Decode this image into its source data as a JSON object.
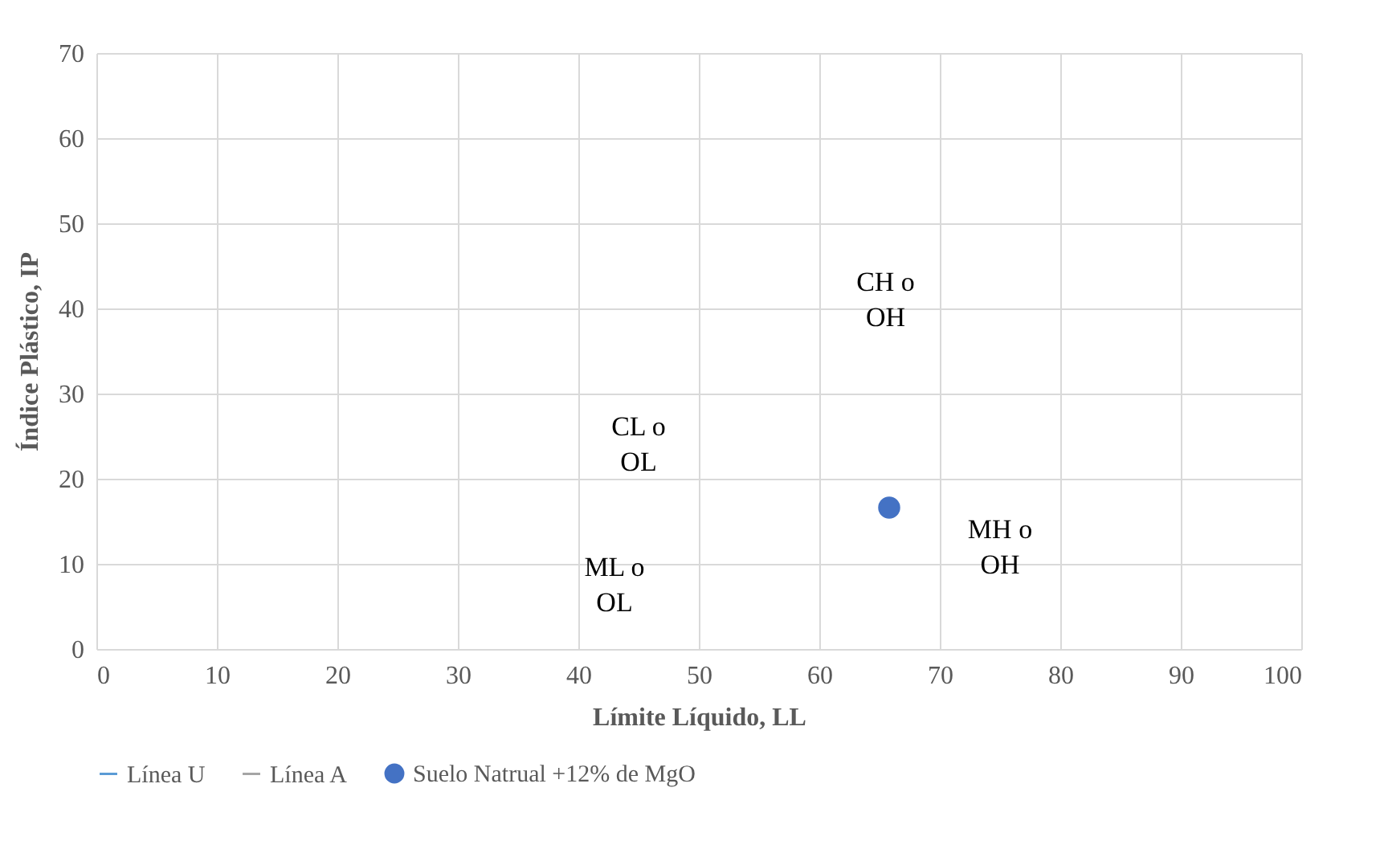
{
  "chart_data": {
    "type": "scatter",
    "xlabel": "Límite Líquido, LL",
    "ylabel": "Índice Plástico, IP",
    "xlim": [
      0,
      100
    ],
    "ylim": [
      0,
      70
    ],
    "xticks": [
      0,
      10,
      20,
      30,
      40,
      50,
      60,
      70,
      80,
      90,
      100
    ],
    "yticks": [
      0,
      10,
      20,
      30,
      40,
      50,
      60,
      70
    ],
    "grid": true,
    "legend": "bottom",
    "marker": "circle",
    "series": [
      {
        "name": "Línea U",
        "type": "line",
        "color": "#5b9bd5"
      },
      {
        "name": "Línea A",
        "type": "line",
        "color": "#a5a5a5"
      },
      {
        "name": "Suelo Natrual +12% de MgO",
        "color": "#4472c4",
        "x": [
          65.8
        ],
        "values": [
          16.6
        ]
      }
    ],
    "annotations": [
      "CH o\nOH",
      "CL o\nOL",
      "ML o\nOL",
      "MH o\nOH"
    ]
  }
}
